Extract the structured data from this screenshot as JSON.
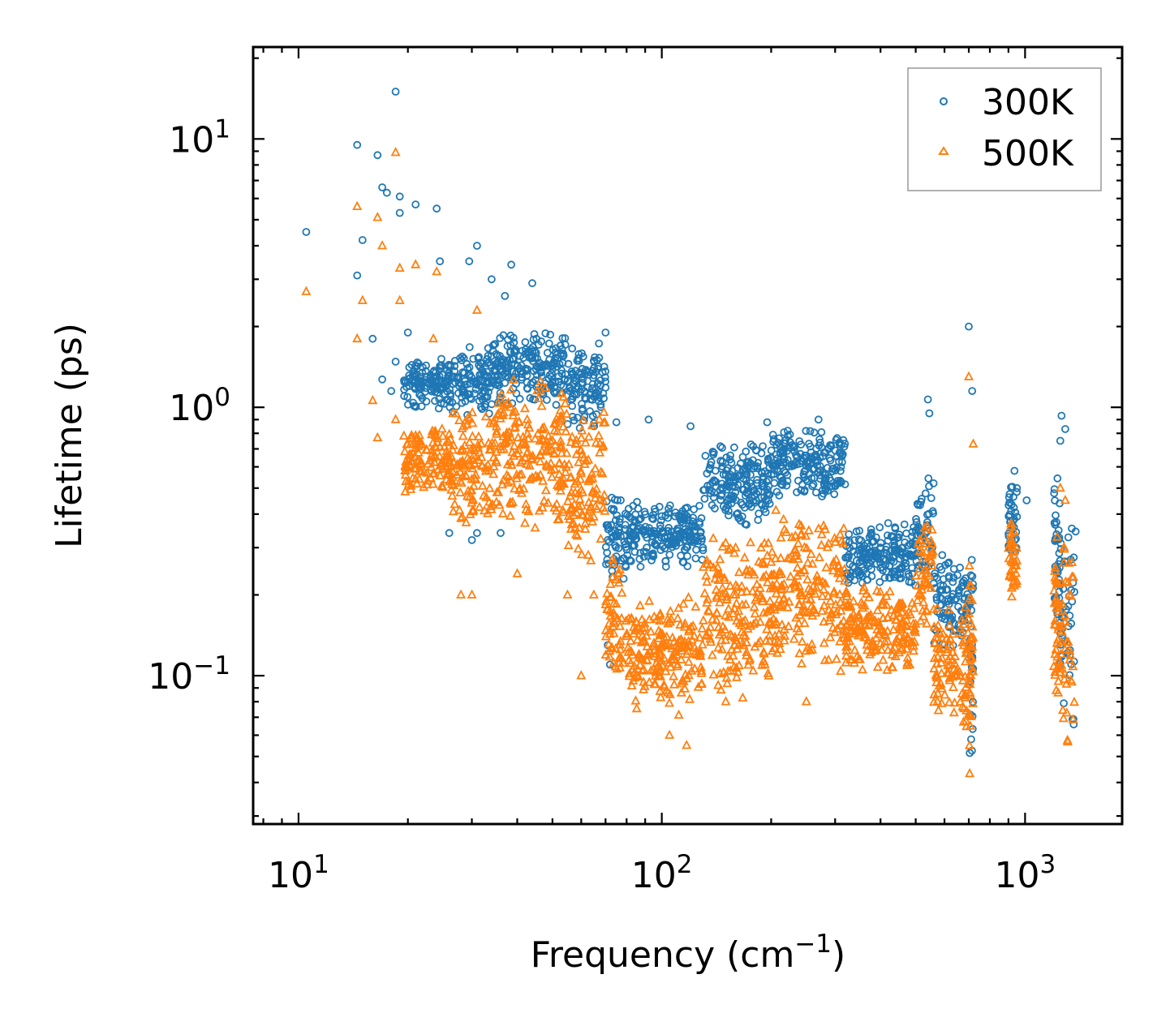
{
  "chart_data": {
    "type": "scatter",
    "title": "",
    "xlabel": "Frequency (cm",
    "xlabel_sup": "−1",
    "xlabel_end": ")",
    "ylabel": "Lifetime (ps)",
    "xscale": "log",
    "yscale": "log",
    "xlim": [
      7.5,
      1850
    ],
    "ylim": [
      0.028,
      22
    ],
    "legend_position": "top-right",
    "x_ticks": [
      {
        "value": 10,
        "base": "10",
        "exp": "1"
      },
      {
        "value": 100,
        "base": "10",
        "exp": "2"
      },
      {
        "value": 1000,
        "base": "10",
        "exp": "3"
      }
    ],
    "y_ticks": [
      {
        "value": 0.1,
        "base": "10",
        "exp": "−1"
      },
      {
        "value": 1,
        "base": "10",
        "exp": "0"
      },
      {
        "value": 10,
        "base": "10",
        "exp": "1"
      }
    ],
    "series": [
      {
        "name": "300K",
        "marker": "circle",
        "color": "#1f77b4",
        "outliers": [
          [
            10.5,
            4.5
          ],
          [
            14.5,
            9.5
          ],
          [
            15,
            4.2
          ],
          [
            14.5,
            3.1
          ],
          [
            16.5,
            8.7
          ],
          [
            17,
            6.6
          ],
          [
            17.5,
            6.3
          ],
          [
            18.5,
            15
          ],
          [
            19,
            6.1
          ],
          [
            19,
            5.3
          ],
          [
            21,
            5.7
          ],
          [
            24,
            5.5
          ],
          [
            16,
            1.8
          ],
          [
            17,
            1.27
          ],
          [
            18,
            1.15
          ],
          [
            18.5,
            1.48
          ],
          [
            20,
            1.9
          ],
          [
            24.5,
            3.5
          ],
          [
            31,
            4.0
          ],
          [
            29.5,
            3.5
          ],
          [
            34,
            3.0
          ],
          [
            37,
            2.6
          ],
          [
            38.5,
            3.4
          ],
          [
            44,
            2.9
          ],
          [
            70,
            1.9
          ],
          [
            75,
            0.88
          ],
          [
            92,
            0.9
          ],
          [
            120,
            0.85
          ],
          [
            195,
            0.88
          ],
          [
            270,
            0.9
          ],
          [
            540,
            1.07
          ],
          [
            700,
            2.0
          ],
          [
            715,
            1.15
          ],
          [
            545,
            0.95
          ],
          [
            935,
            0.58
          ],
          [
            1260,
            0.93
          ],
          [
            1250,
            0.75
          ],
          [
            1290,
            0.83
          ],
          [
            1010,
            0.45
          ],
          [
            26,
            0.34
          ],
          [
            30,
            0.32
          ],
          [
            31,
            0.34
          ],
          [
            36,
            0.34
          ],
          [
            72,
            0.11
          ],
          [
            71,
            0.13
          ]
        ],
        "bands": [
          {
            "x": [
              19.5,
              26
            ],
            "y_low": 0.95,
            "y_high": 1.6
          },
          {
            "x": [
              26,
              34
            ],
            "y_low": 0.9,
            "y_high": 1.7
          },
          {
            "x": [
              34,
              55
            ],
            "y_low": 1.0,
            "y_high": 2.0
          },
          {
            "x": [
              55,
              70
            ],
            "y_low": 0.8,
            "y_high": 1.8
          },
          {
            "x": [
              70,
              80
            ],
            "y_low": 0.22,
            "y_high": 0.5
          },
          {
            "x": [
              80,
              130
            ],
            "y_low": 0.25,
            "y_high": 0.45
          },
          {
            "x": [
              130,
              200
            ],
            "y_low": 0.35,
            "y_high": 0.75
          },
          {
            "x": [
              200,
              320
            ],
            "y_low": 0.45,
            "y_high": 0.85
          },
          {
            "x": [
              320,
              500
            ],
            "y_low": 0.21,
            "y_high": 0.38
          },
          {
            "x": [
              500,
              560
            ],
            "y_low": 0.2,
            "y_high": 0.6
          },
          {
            "x": [
              560,
              700
            ],
            "y_low": 0.12,
            "y_high": 0.3
          },
          {
            "x": [
              700,
              720
            ],
            "y_low": 0.04,
            "y_high": 0.4
          },
          {
            "x": [
              900,
              950
            ],
            "y_low": 0.25,
            "y_high": 0.55
          },
          {
            "x": [
              1200,
              1250
            ],
            "y_low": 0.1,
            "y_high": 0.6
          },
          {
            "x": [
              1250,
              1380
            ],
            "y_low": 0.05,
            "y_high": 0.55
          }
        ]
      },
      {
        "name": "500K",
        "marker": "triangle",
        "color": "#ff7f0e",
        "outliers": [
          [
            10.5,
            2.7
          ],
          [
            14.5,
            1.8
          ],
          [
            15,
            2.5
          ],
          [
            14.5,
            5.6
          ],
          [
            16.5,
            5.1
          ],
          [
            17,
            4.0
          ],
          [
            18.5,
            8.9
          ],
          [
            19,
            3.3
          ],
          [
            19,
            2.5
          ],
          [
            21,
            3.4
          ],
          [
            24,
            3.2
          ],
          [
            16,
            1.06
          ],
          [
            16.5,
            0.77
          ],
          [
            18.5,
            0.9
          ],
          [
            23.5,
            1.8
          ],
          [
            28,
            0.2
          ],
          [
            30,
            0.2
          ],
          [
            31,
            2.3
          ],
          [
            40,
            0.24
          ],
          [
            60,
            0.1
          ],
          [
            105,
            0.06
          ],
          [
            117,
            0.055
          ],
          [
            150,
            0.08
          ],
          [
            250,
            0.08
          ],
          [
            700,
            1.3
          ],
          [
            720,
            0.73
          ],
          [
            1290,
            0.45
          ],
          [
            1250,
            0.5
          ],
          [
            42,
            0.37
          ],
          [
            55,
            0.2
          ],
          [
            65,
            0.2
          ],
          [
            80,
            0.14
          ]
        ],
        "bands": [
          {
            "x": [
              19.5,
              26
            ],
            "y_low": 0.45,
            "y_high": 0.9
          },
          {
            "x": [
              26,
              34
            ],
            "y_low": 0.35,
            "y_high": 1.0
          },
          {
            "x": [
              34,
              55
            ],
            "y_low": 0.35,
            "y_high": 1.3
          },
          {
            "x": [
              55,
              70
            ],
            "y_low": 0.25,
            "y_high": 1.1
          },
          {
            "x": [
              70,
              80
            ],
            "y_low": 0.09,
            "y_high": 0.3
          },
          {
            "x": [
              80,
              130
            ],
            "y_low": 0.07,
            "y_high": 0.2
          },
          {
            "x": [
              130,
              200
            ],
            "y_low": 0.08,
            "y_high": 0.35
          },
          {
            "x": [
              200,
              320
            ],
            "y_low": 0.1,
            "y_high": 0.42
          },
          {
            "x": [
              320,
              500
            ],
            "y_low": 0.1,
            "y_high": 0.22
          },
          {
            "x": [
              500,
              560
            ],
            "y_low": 0.12,
            "y_high": 0.45
          },
          {
            "x": [
              560,
              700
            ],
            "y_low": 0.06,
            "y_high": 0.2
          },
          {
            "x": [
              700,
              720
            ],
            "y_low": 0.035,
            "y_high": 0.3
          },
          {
            "x": [
              900,
              950
            ],
            "y_low": 0.18,
            "y_high": 0.4
          },
          {
            "x": [
              1200,
              1250
            ],
            "y_low": 0.07,
            "y_high": 0.4
          },
          {
            "x": [
              1250,
              1380
            ],
            "y_low": 0.035,
            "y_high": 0.45
          }
        ]
      }
    ]
  }
}
